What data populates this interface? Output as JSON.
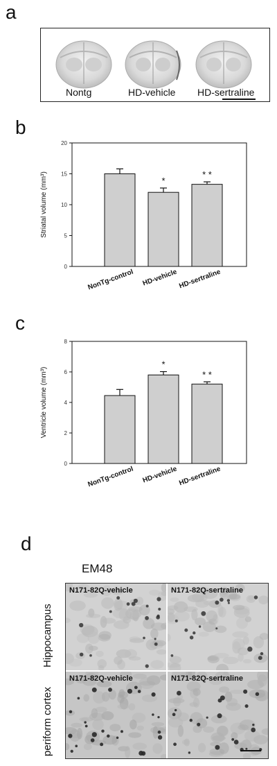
{
  "panels": {
    "a": "a",
    "b": "b",
    "c": "c",
    "d": "d"
  },
  "panel_a": {
    "labels": [
      "Nontg",
      "HD-vehicle",
      "HD-sertraline"
    ]
  },
  "chart_data": [
    {
      "type": "bar",
      "panel": "b",
      "categories": [
        "NonTg-control",
        "HD-vehicle",
        "HD-sertraline"
      ],
      "values": [
        15.0,
        12.0,
        13.3
      ],
      "errors": [
        0.8,
        0.7,
        0.4
      ],
      "significance": [
        "",
        "*",
        "**"
      ],
      "ylabel": "Striatal volume (mm³)",
      "ylim": [
        0,
        20
      ],
      "yticks": [
        0,
        5,
        10,
        15,
        20
      ],
      "bar_color": "#cfcfcf"
    },
    {
      "type": "bar",
      "panel": "c",
      "categories": [
        "NonTg-control",
        "HD-vehicle",
        "HD-sertraline"
      ],
      "values": [
        4.45,
        5.8,
        5.2
      ],
      "errors": [
        0.4,
        0.22,
        0.15
      ],
      "significance": [
        "",
        "*",
        "**"
      ],
      "ylabel": "Ventricle volume (mm³)",
      "ylim": [
        0,
        8
      ],
      "yticks": [
        0,
        2,
        4,
        6,
        8
      ],
      "bar_color": "#cfcfcf"
    }
  ],
  "panel_d": {
    "stain": "EM48",
    "rows": [
      "Hippocampus",
      "periform cortex"
    ],
    "quadrants": [
      "N171-82Q-vehicle",
      "N171-82Q-sertraline",
      "N171-82Q-vehicle",
      "N171-82Q-sertraline"
    ]
  }
}
